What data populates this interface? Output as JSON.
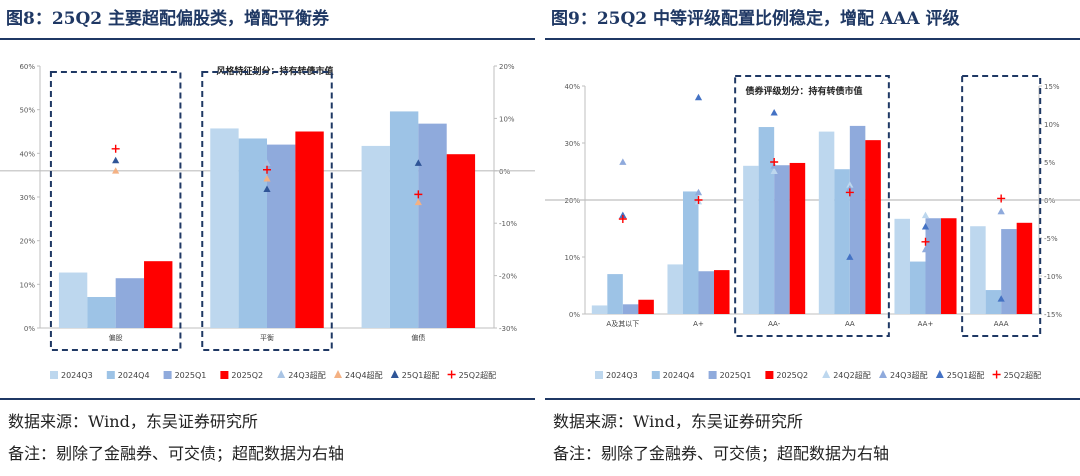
{
  "left": {
    "title": "图8：25Q2 主要超配偏股类，增配平衡券",
    "source_note": "数据来源：Wind，东吴证券研究所",
    "remark_note": "备注：剔除了金融券、可交债；超配数据为右轴",
    "chart_data": {
      "type": "bar",
      "title": "风格特征划分：持有转债市值",
      "categories": [
        "偏股",
        "平衡",
        "偏债"
      ],
      "series": [
        {
          "name": "2024Q3",
          "values": [
            12.7,
            45.7,
            41.7
          ],
          "color": "#bdd7ee"
        },
        {
          "name": "2024Q4",
          "values": [
            7.1,
            43.4,
            49.6
          ],
          "color": "#9dc3e6"
        },
        {
          "name": "2025Q1",
          "values": [
            11.4,
            42.0,
            46.8
          ],
          "color": "#8faadc"
        },
        {
          "name": "2025Q2",
          "values": [
            15.3,
            45.0,
            39.8
          ],
          "color": "#ff0000"
        }
      ],
      "overweight": [
        {
          "name": "24Q3超配",
          "values": [
            null,
            1.5,
            null
          ],
          "marker": "triangle",
          "color": "#a9c4e4"
        },
        {
          "name": "24Q4超配",
          "values": [
            0,
            -1.5,
            -6
          ],
          "marker": "triangle",
          "color": "#f4b183"
        },
        {
          "name": "25Q1超配",
          "values": [
            2,
            -3.5,
            1.5
          ],
          "marker": "triangle",
          "color": "#2f5597"
        },
        {
          "name": "25Q2超配",
          "values": [
            4.2,
            0.2,
            -4.5
          ],
          "marker": "plus",
          "color": "#ff0000"
        }
      ],
      "ylim": [
        0,
        60
      ],
      "yticks": [
        "0%",
        "10%",
        "20%",
        "30%",
        "40%",
        "50%",
        "60%"
      ],
      "y2lim": [
        -30,
        20
      ],
      "y2ticks": [
        "-30%",
        "-20%",
        "-10%",
        "0%",
        "10%",
        "20%"
      ],
      "legend": [
        "2024Q3",
        "2024Q4",
        "2025Q1",
        "2025Q2",
        "24Q3超配",
        "24Q4超配",
        "25Q1超配",
        "25Q2超配"
      ],
      "legend_position": "bottom",
      "highlight_boxes": [
        [
          0,
          0
        ],
        [
          1,
          1
        ]
      ]
    }
  },
  "right": {
    "title": "图9：25Q2 中等评级配置比例稳定，增配 AAA 评级",
    "source_note": "数据来源：Wind，东吴证券研究所",
    "remark_note": "备注：剔除了金融券、可交债；超配数据为右轴",
    "chart_data": {
      "type": "bar",
      "title": "债券评级划分：持有转债市值",
      "categories": [
        "A及其以下",
        "A+",
        "AA-",
        "AA",
        "AA+",
        "AAA"
      ],
      "series": [
        {
          "name": "2024Q3",
          "values": [
            1.5,
            8.7,
            26.0,
            32.0,
            16.7,
            15.4
          ],
          "color": "#bdd7ee"
        },
        {
          "name": "2024Q4",
          "values": [
            7.0,
            21.5,
            32.8,
            25.4,
            9.2,
            4.2
          ],
          "color": "#9dc3e6"
        },
        {
          "name": "2025Q1",
          "values": [
            1.7,
            7.5,
            26.1,
            33.0,
            16.8,
            14.9
          ],
          "color": "#8faadc"
        },
        {
          "name": "2025Q2",
          "values": [
            2.5,
            7.7,
            26.5,
            30.5,
            16.8,
            16.0
          ],
          "color": "#ff0000"
        }
      ],
      "overweight": [
        {
          "name": "24Q2超配",
          "values": [
            -2.0,
            -0.2,
            3.8,
            2.0,
            -2.0,
            -1.5
          ],
          "marker": "triangle",
          "color": "#bdd7ee"
        },
        {
          "name": "24Q3超配",
          "values": [
            5.0,
            1.0,
            4.5,
            1.5,
            -6.5,
            -1.5
          ],
          "marker": "triangle",
          "color": "#8faadc"
        },
        {
          "name": "25Q1超配",
          "values": [
            -2.0,
            13.5,
            11.5,
            -7.5,
            -3.5,
            -13.0
          ],
          "marker": "triangle",
          "color": "#4472c4"
        },
        {
          "name": "25Q2超配",
          "values": [
            -2.5,
            0,
            5.0,
            1.0,
            -5.5,
            0.2
          ],
          "marker": "plus",
          "color": "#ff0000"
        }
      ],
      "ylim": [
        0,
        40
      ],
      "yticks": [
        "0%",
        "10%",
        "20%",
        "30%",
        "40%"
      ],
      "y2lim": [
        -15,
        15
      ],
      "y2ticks": [
        "-15%",
        "-10%",
        "-5%",
        "0%",
        "5%",
        "10%",
        "15%"
      ],
      "legend": [
        "2024Q3",
        "2024Q4",
        "2025Q1",
        "2025Q2",
        "24Q2超配",
        "24Q3超配",
        "25Q1超配",
        "25Q2超配"
      ],
      "legend_position": "bottom",
      "highlight_boxes": [
        [
          2,
          3
        ],
        [
          5,
          5
        ]
      ]
    }
  }
}
